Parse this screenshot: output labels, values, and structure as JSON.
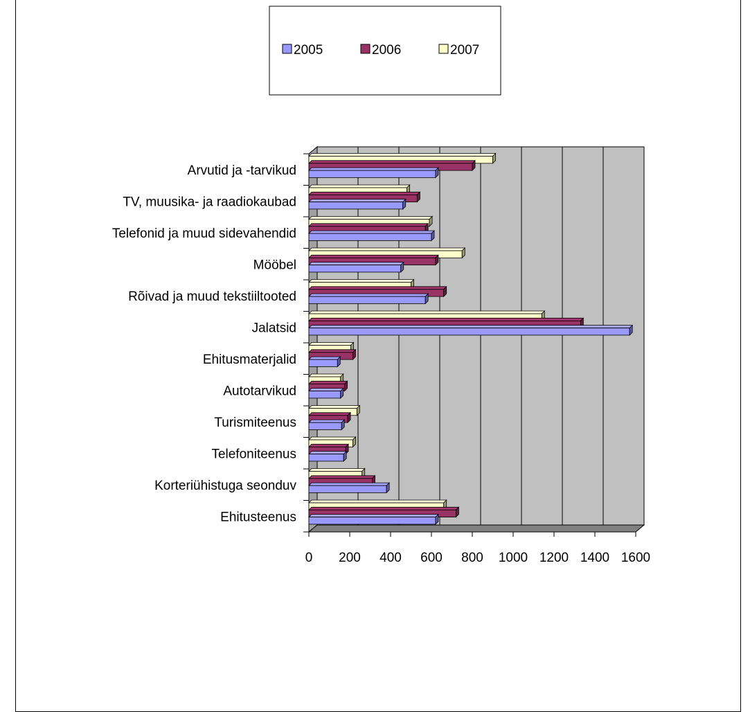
{
  "chart_data": {
    "type": "bar",
    "orientation": "horizontal",
    "style": "3d-clustered",
    "categories": [
      "Ehitusteenus",
      "Korteriühistuga seonduv",
      "Telefoniteenus",
      "Turismiteenus",
      "Autotarvikud",
      "Ehitusmaterjalid",
      "Jalatsid",
      "Rõivad ja muud tekstiiltooted",
      "Mööbel",
      "Telefonid ja muud sidevahendid",
      "TV, muusika- ja raadiokaubad",
      "Arvutid ja -tarvikud"
    ],
    "series": [
      {
        "name": "2005",
        "color": "#9999ff",
        "values": [
          620,
          380,
          170,
          160,
          155,
          140,
          1570,
          570,
          450,
          600,
          460,
          620
        ]
      },
      {
        "name": "2006",
        "color": "#993366",
        "values": [
          720,
          310,
          180,
          190,
          175,
          215,
          1330,
          660,
          620,
          570,
          530,
          800
        ]
      },
      {
        "name": "2007",
        "color": "#ffffcc",
        "values": [
          660,
          260,
          215,
          235,
          155,
          205,
          1140,
          500,
          750,
          590,
          480,
          900
        ]
      }
    ],
    "xlim": [
      0,
      1600
    ],
    "xticks": [
      "0",
      "200",
      "400",
      "600",
      "800",
      "1000",
      "1200",
      "1400",
      "1600"
    ],
    "legend_position": "top-center",
    "grid": true,
    "plot_area_color": "#c0c0c0",
    "title": "",
    "xlabel": "",
    "ylabel": ""
  }
}
